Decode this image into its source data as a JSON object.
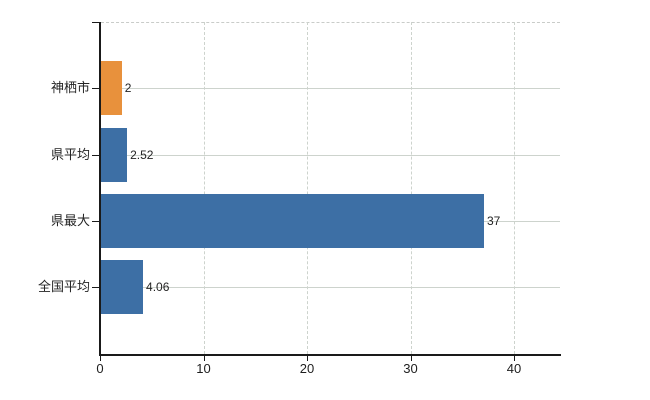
{
  "chart": {
    "background": "#ffffff",
    "colors": {
      "axis": "#1a1a1a",
      "grid": "#cdd3cd",
      "top_border": "#c9ccc9",
      "bar_orange": "#e8913c",
      "bar_blue": "#3d6fa5",
      "label_text": "#242424",
      "tick_text": "#1e1e1e"
    }
  },
  "chart_data": {
    "type": "bar",
    "orientation": "horizontal",
    "title": "",
    "xlabel": "",
    "ylabel": "",
    "categories": [
      "神栖市",
      "県平均",
      "県最大",
      "全国平均"
    ],
    "values": [
      2,
      2.52,
      37,
      4.06
    ],
    "value_labels": [
      "2",
      "2.52",
      "37",
      "4.06"
    ],
    "bar_colors": [
      "#e8913c",
      "#3d6fa5",
      "#3d6fa5",
      "#3d6fa5"
    ],
    "x_ticks": [
      0,
      10,
      20,
      30,
      40
    ],
    "x_tick_labels": [
      "0",
      "10",
      "20",
      "30",
      "40"
    ],
    "xlim": [
      0,
      44.5
    ],
    "grid": {
      "vertical_lines": "dashed at each x tick except 0",
      "horizontal_lines": "solid at each category center",
      "top_border": "dashed"
    },
    "legend": "none"
  }
}
